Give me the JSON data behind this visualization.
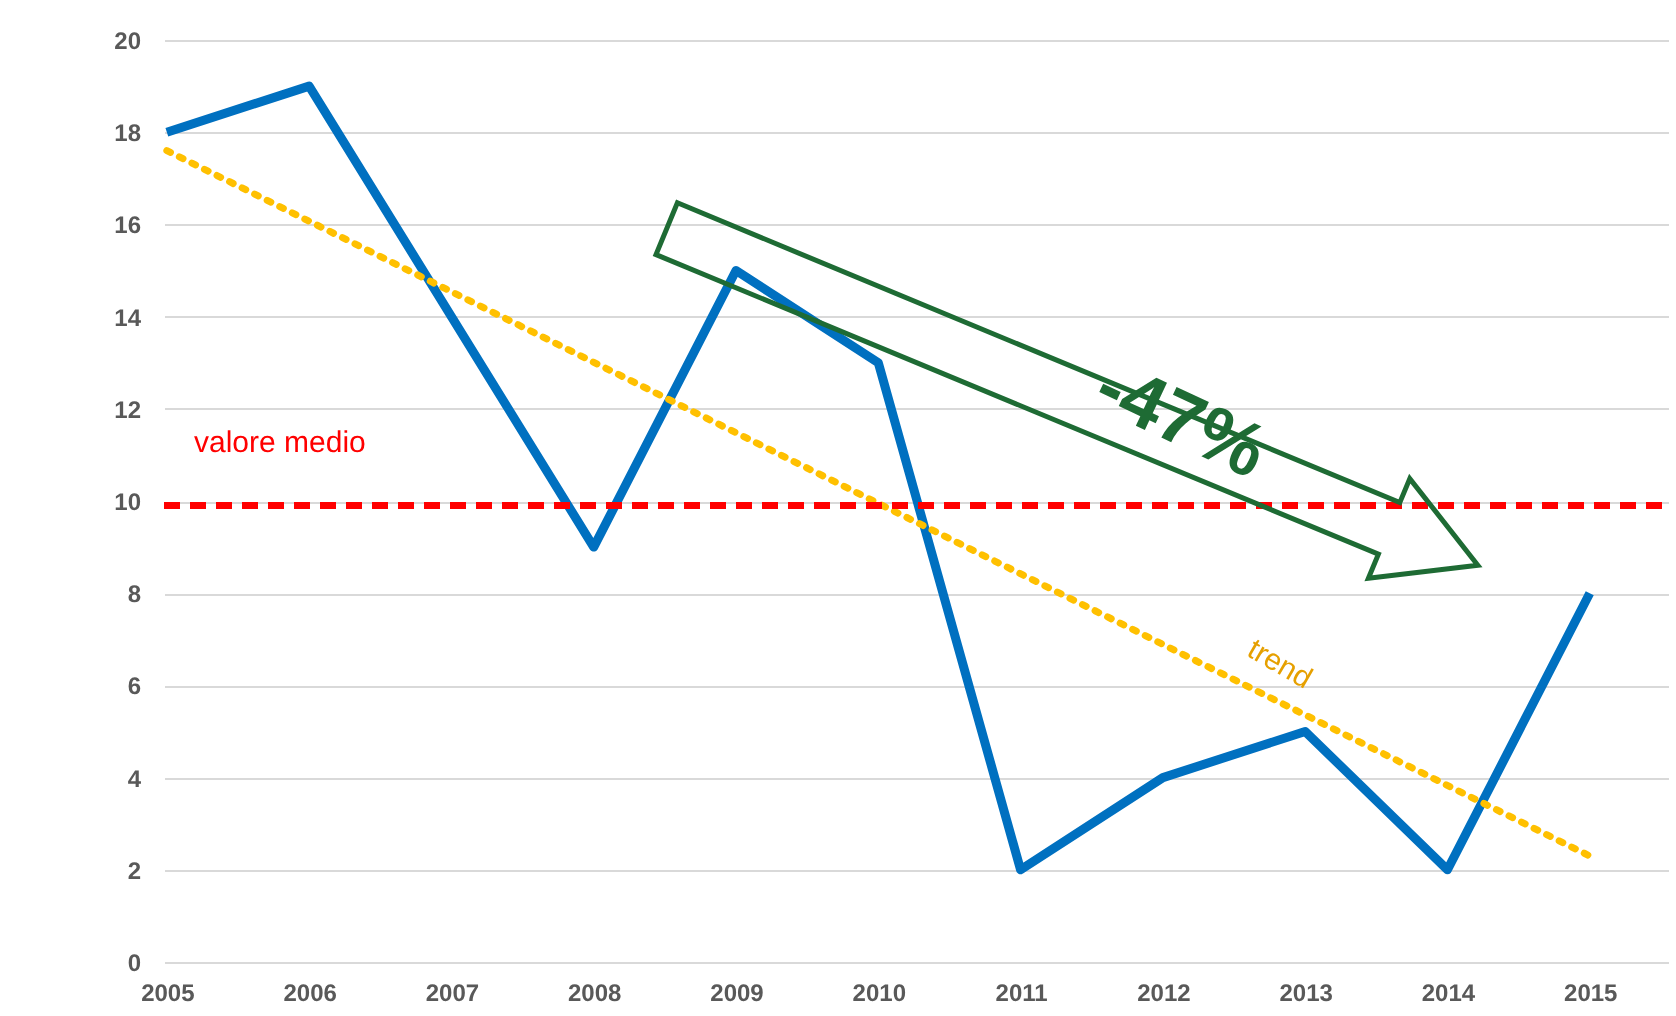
{
  "chart_data": {
    "type": "line",
    "categories": [
      "2005",
      "2006",
      "2007",
      "2008",
      "2009",
      "2010",
      "2011",
      "2012",
      "2013",
      "2014",
      "2015"
    ],
    "series": [
      {
        "color": "#0070c0",
        "values": [
          18,
          19,
          14,
          9,
          15,
          13,
          2,
          4,
          5,
          2,
          8
        ]
      },
      {
        "type": "line",
        "name": "trend",
        "values": [
          17.6,
          null,
          null,
          null,
          null,
          null,
          null,
          null,
          null,
          null,
          2.3
        ],
        "color": "#ffc000",
        "line_style": "dotted"
      }
    ],
    "ylim": [
      0,
      20
    ],
    "yticks": [
      0,
      2,
      4,
      6,
      8,
      10,
      12,
      14,
      16,
      18,
      20
    ],
    "grid": "y",
    "marker": "none",
    "line_style": "solid",
    "ref_lines": [
      {
        "axis": "y",
        "value": 9.9,
        "label": "valore medio",
        "color": "#ff0000",
        "line_style": "dashed"
      }
    ],
    "annotations": [
      "-47%"
    ]
  }
}
